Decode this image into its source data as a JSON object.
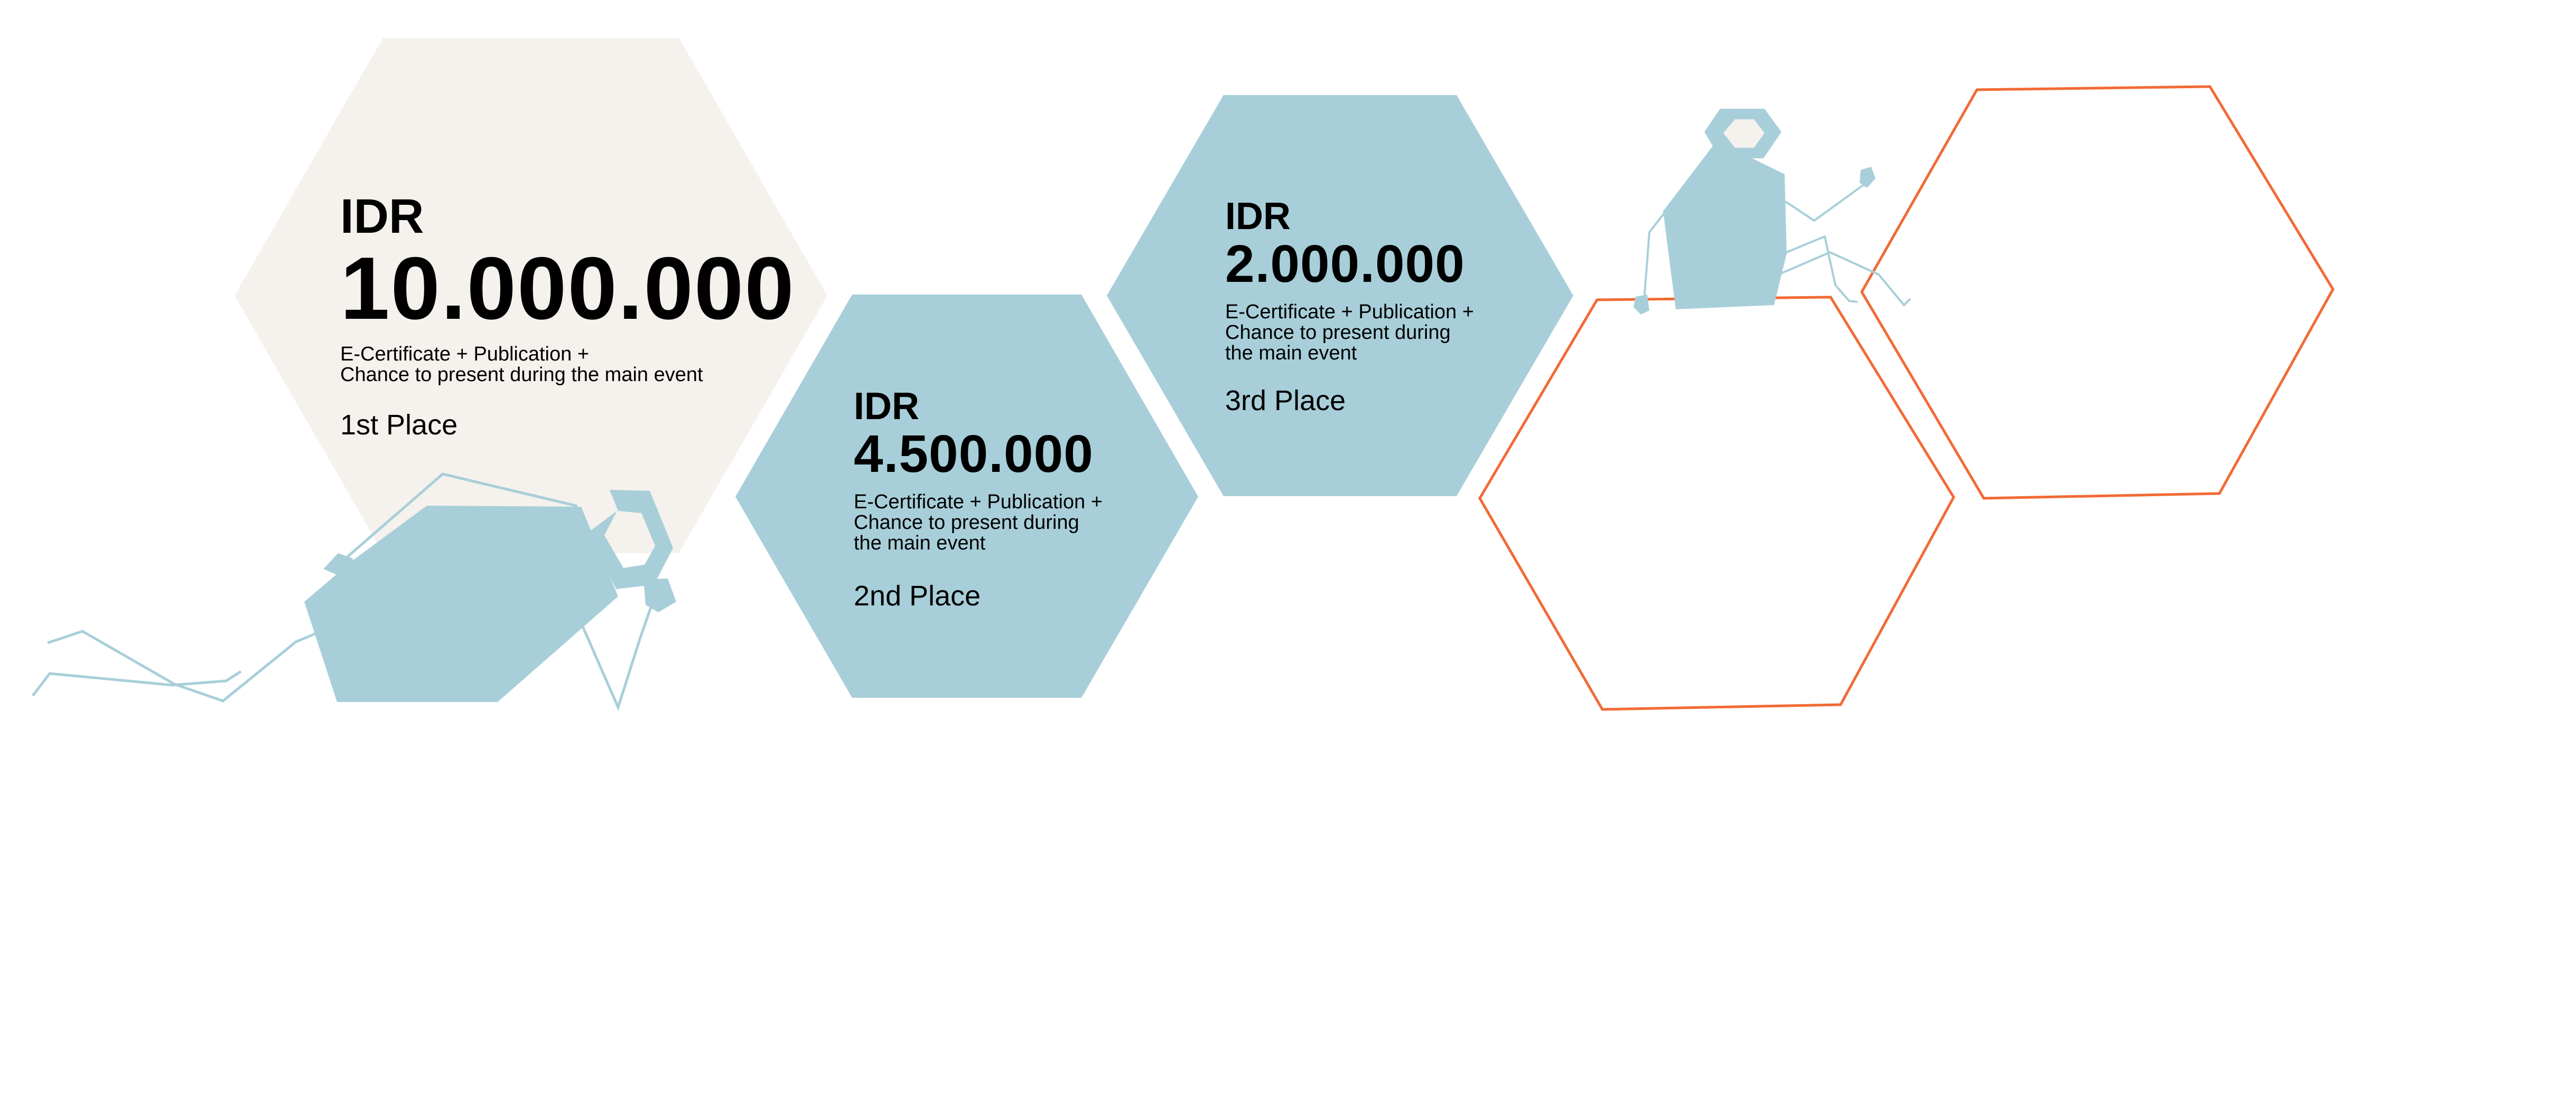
{
  "colors": {
    "first_hex_fill": "#f5f1ec",
    "second_third_hex_fill": "#a8cfd9",
    "outline_hex_stroke": "#f26a35",
    "illustration": "#a8cfd9",
    "text": "#000000",
    "background": "#ffffff"
  },
  "prizes": [
    {
      "currency": "IDR",
      "amount": "10.000.000",
      "description_lines": [
        "E-Certificate + Publication +",
        "Chance to present during the main event"
      ],
      "place": "1st Place"
    },
    {
      "currency": "IDR",
      "amount": "4.500.000",
      "description_lines": [
        "E-Certificate + Publication +",
        "Chance to present during",
        "the main event"
      ],
      "place": "2nd Place"
    },
    {
      "currency": "IDR",
      "amount": "2.000.000",
      "description_lines": [
        "E-Certificate + Publication +",
        "Chance to present during",
        "the main event"
      ],
      "place": "3rd Place"
    }
  ],
  "decorations": {
    "figures": [
      "reclining-figure-illustration",
      "sitting-figure-illustration"
    ],
    "outline_hexagons": 2
  }
}
